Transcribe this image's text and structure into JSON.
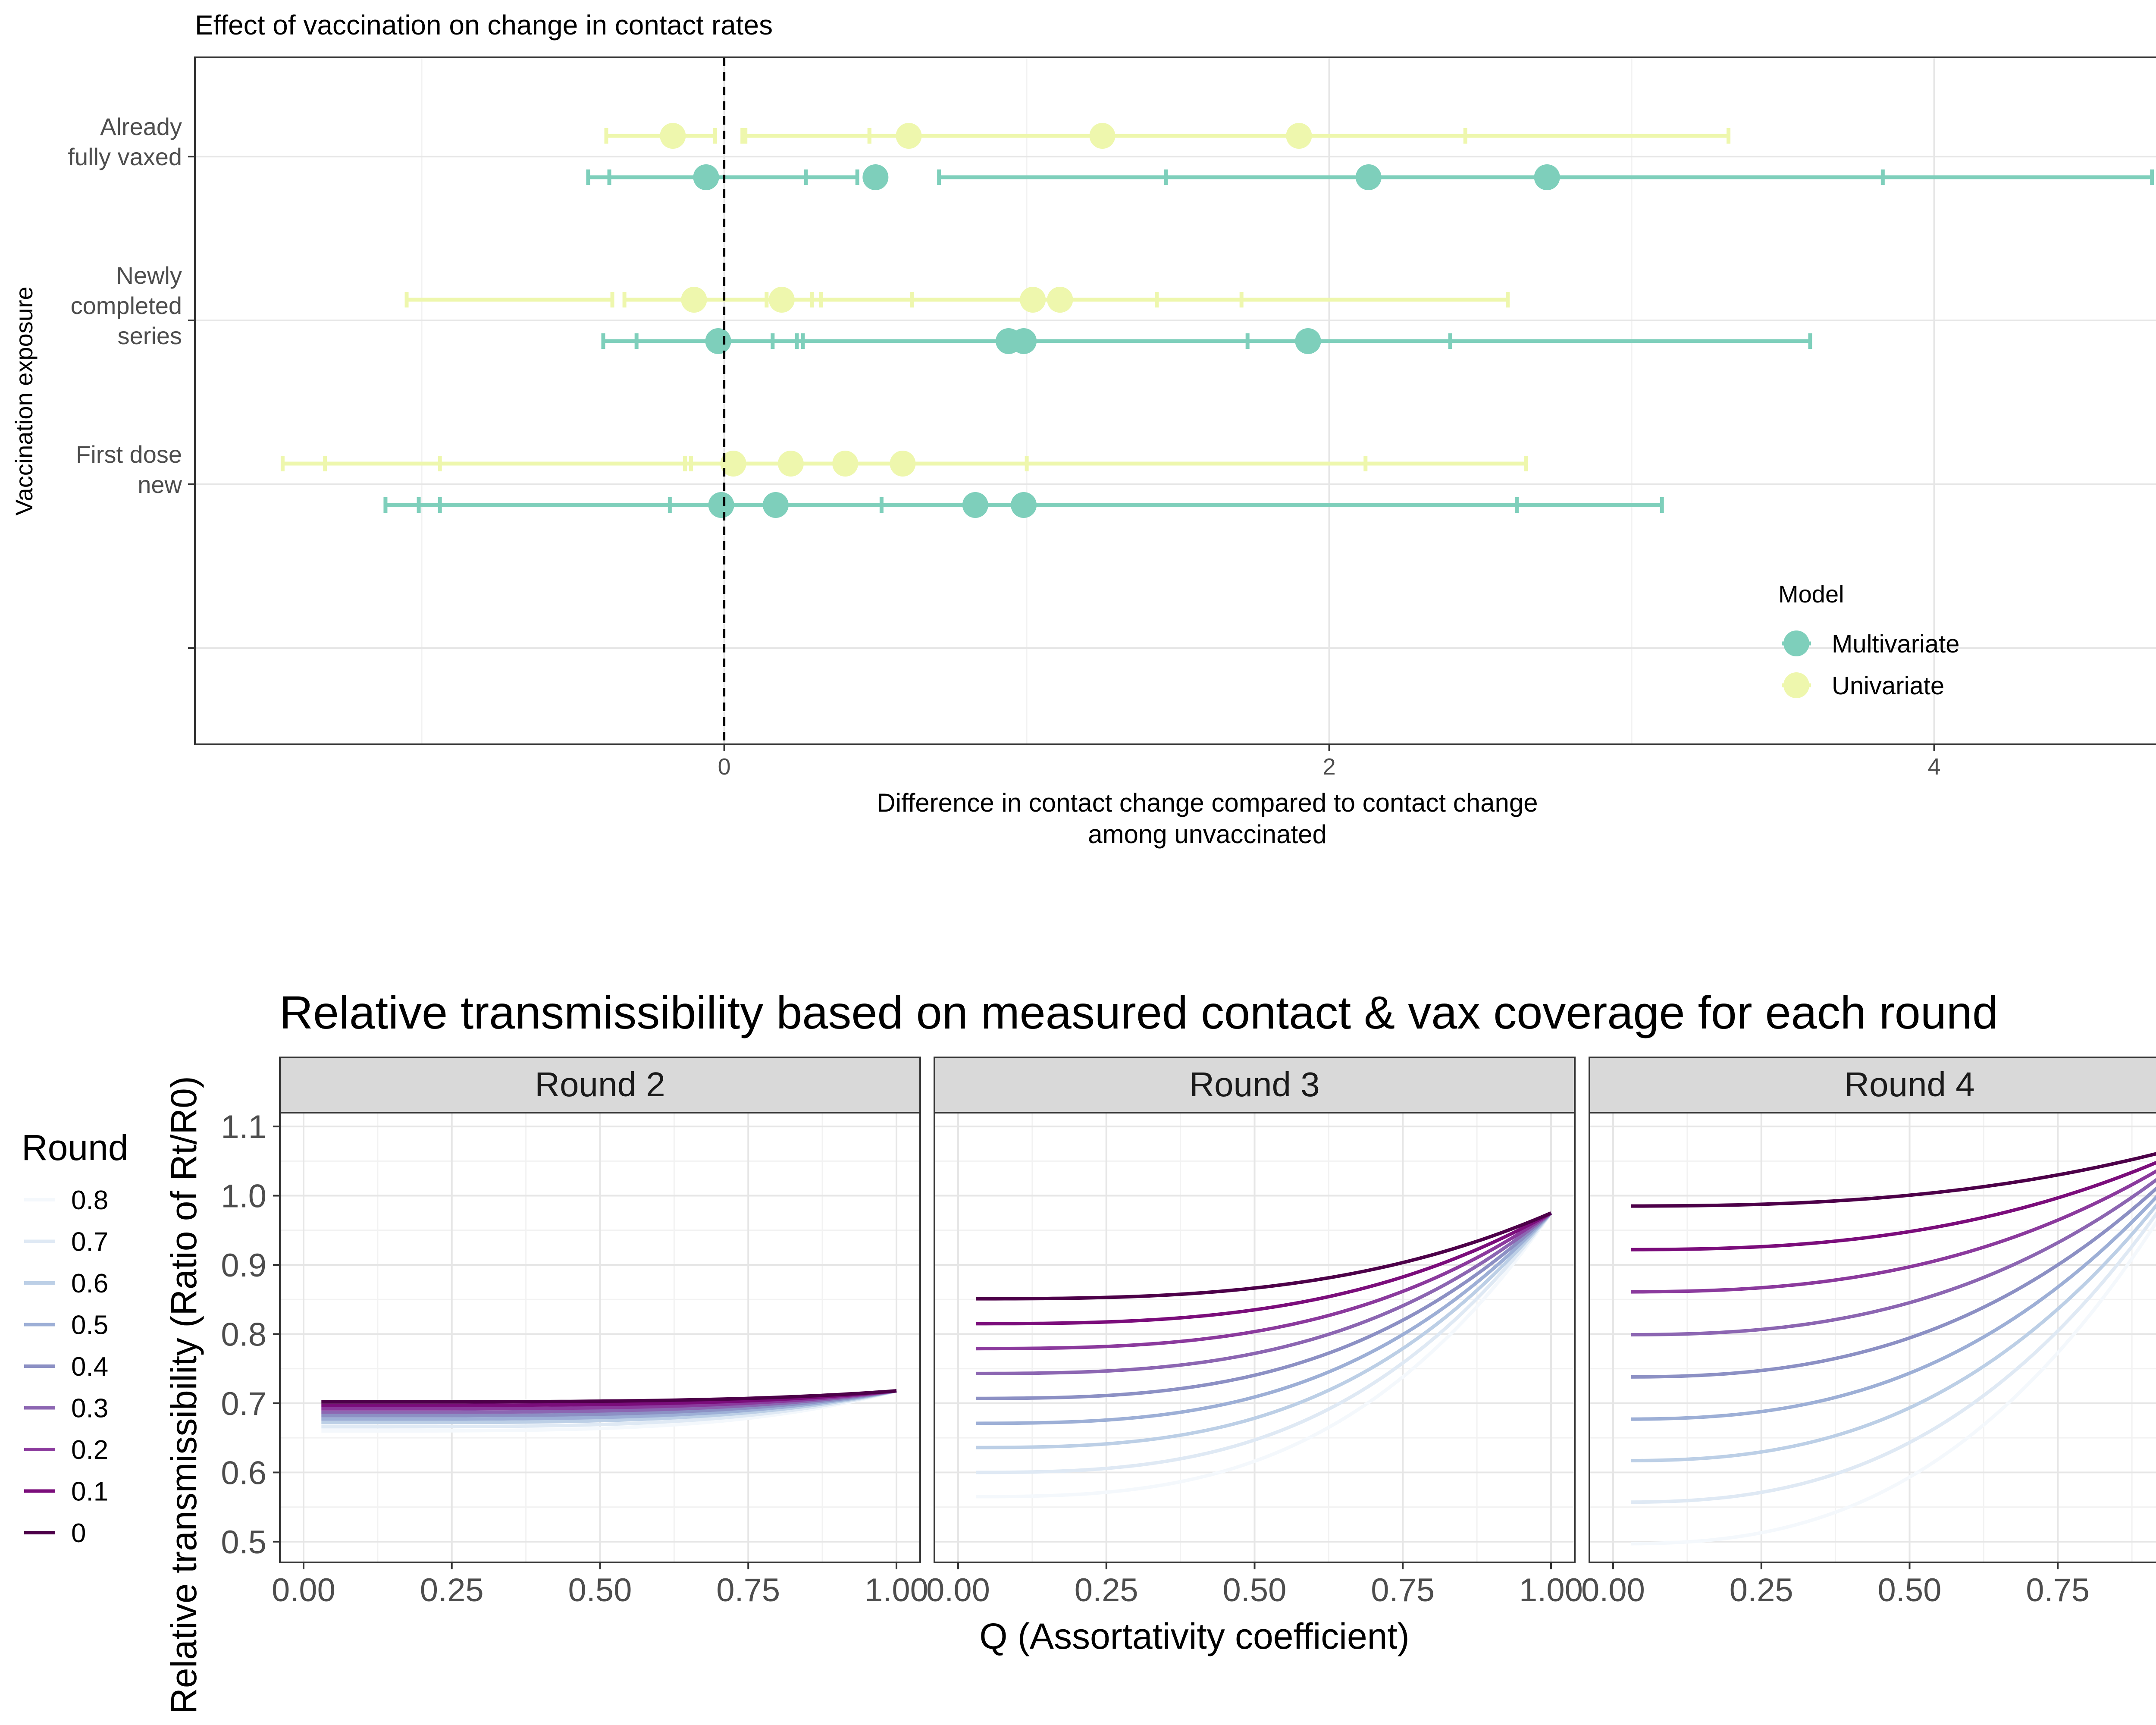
{
  "chart_data": [
    {
      "type": "scatter",
      "subtype": "forest-plot",
      "title": "Effect of vaccination on change in contact rates",
      "xlabel": "Difference in contact change compared to contact change among unvaccinated",
      "xlabel_lines": [
        "Difference in contact change compared to contact change",
        "among unvaccinated"
      ],
      "ylabel": "Vaccination exposure",
      "xlim": [
        -1.75,
        4.95
      ],
      "x_ticks": [
        0,
        2,
        4
      ],
      "x_tick_labels": [
        "0",
        "2",
        "4"
      ],
      "reference_line": 0,
      "grid": true,
      "legend_position": "bottom-right",
      "legend": {
        "title": "Model",
        "entries": [
          {
            "name": "Multivariate",
            "color": "#7ecfbb"
          },
          {
            "name": "Univariate",
            "color": "#eef7ad"
          }
        ]
      },
      "categories": [
        {
          "id": "already",
          "label_lines": [
            "Already",
            "fully vaxed"
          ]
        },
        {
          "id": "newly",
          "label_lines": [
            "Newly",
            "completed",
            "series"
          ]
        },
        {
          "id": "first",
          "label_lines": [
            "First dose",
            "new"
          ]
        }
      ],
      "series": [
        {
          "name": "Univariate",
          "color": "#eef7ad",
          "points": [
            {
              "category": "already",
              "estimate": -0.17,
              "low": -0.39,
              "high": -0.03
            },
            {
              "category": "already",
              "estimate": 0.61,
              "low": 0.07,
              "high": 0.48
            },
            {
              "category": "already",
              "estimate": 1.25,
              "low": 0.06,
              "high": 2.45
            },
            {
              "category": "already",
              "estimate": 1.9,
              "low": 0.48,
              "high": 3.32
            },
            {
              "category": "newly",
              "estimate": -0.1,
              "low": -1.05,
              "high": -0.37
            },
            {
              "category": "newly",
              "estimate": 0.19,
              "low": -0.33,
              "high": 0.32
            },
            {
              "category": "newly",
              "estimate": 1.02,
              "low": 0.14,
              "high": 1.71
            },
            {
              "category": "newly",
              "estimate": 1.11,
              "low": 0.29,
              "high": 2.59
            },
            {
              "category": "newly",
              "estimate": 1.11,
              "low": 0.62,
              "high": 1.43
            },
            {
              "category": "first",
              "estimate": 0.03,
              "low": -1.46,
              "high": -0.11
            },
            {
              "category": "first",
              "estimate": 0.22,
              "low": -0.94,
              "high": 2.12
            },
            {
              "category": "first",
              "estimate": 0.4,
              "low": -1.32,
              "high": 1.0
            },
            {
              "category": "first",
              "estimate": 0.59,
              "low": -0.13,
              "high": 2.65
            }
          ]
        },
        {
          "name": "Multivariate",
          "color": "#7ecfbb",
          "points": [
            {
              "category": "already",
              "estimate": -0.06,
              "low": -0.45,
              "high": 0.27
            },
            {
              "category": "already",
              "estimate": 0.5,
              "low": -0.38,
              "high": 0.44
            },
            {
              "category": "already",
              "estimate": 2.13,
              "low": 0.71,
              "high": 3.83
            },
            {
              "category": "already",
              "estimate": 2.72,
              "low": 1.46,
              "high": 4.72
            },
            {
              "category": "newly",
              "estimate": -0.02,
              "low": -0.4,
              "high": 0.16
            },
            {
              "category": "newly",
              "estimate": 0.94,
              "low": -0.29,
              "high": 1.73
            },
            {
              "category": "newly",
              "estimate": 0.99,
              "low": 0.24,
              "high": 2.4
            },
            {
              "category": "newly",
              "estimate": 1.93,
              "low": 0.26,
              "high": 3.59
            },
            {
              "category": "first",
              "estimate": -0.01,
              "low": -1.12,
              "high": 0.52
            },
            {
              "category": "first",
              "estimate": 0.17,
              "low": -1.01,
              "high": 3.1
            },
            {
              "category": "first",
              "estimate": 0.83,
              "low": -0.94,
              "high": 0.99
            },
            {
              "category": "first",
              "estimate": 0.99,
              "low": -0.18,
              "high": 2.62
            }
          ]
        }
      ]
    },
    {
      "type": "line",
      "facets": true,
      "title": "Relative transmissibility based on measured contact & vax coverage for each round",
      "xlabel": "Q (Assortativity coefficient)",
      "ylabel": "Relative transmissibility (Ratio of Rt/R0)",
      "xlim": [
        -0.04,
        1.04
      ],
      "ylim": [
        0.47,
        1.12
      ],
      "x_ticks": [
        0,
        0.25,
        0.5,
        0.75,
        1
      ],
      "x_tick_labels": [
        "0.00",
        "0.25",
        "0.50",
        "0.75",
        "1.00"
      ],
      "y_ticks": [
        0.5,
        0.6,
        0.7,
        0.8,
        0.9,
        1.0,
        1.1
      ],
      "y_tick_labels": [
        "0.5",
        "0.6",
        "0.7",
        "0.8",
        "0.9",
        "1.0",
        "1.1"
      ],
      "grid": true,
      "legend_position": "left",
      "legend": {
        "title": "Round",
        "entries": [
          {
            "label": "0.8",
            "value": 0.8,
            "color": "#f4f8fc"
          },
          {
            "label": "0.7",
            "value": 0.7,
            "color": "#dfe9f4"
          },
          {
            "label": "0.6",
            "value": 0.6,
            "color": "#bccfe6"
          },
          {
            "label": "0.5",
            "value": 0.5,
            "color": "#9dafd6"
          },
          {
            "label": "0.4",
            "value": 0.4,
            "color": "#8c90c4"
          },
          {
            "label": "0.3",
            "value": 0.3,
            "color": "#8c66b2"
          },
          {
            "label": "0.2",
            "value": 0.2,
            "color": "#8b3a9d"
          },
          {
            "label": "0.1",
            "value": 0.1,
            "color": "#7b0d7b"
          },
          {
            "label": "0",
            "value": 0,
            "color": "#4d0049"
          }
        ]
      },
      "panels": [
        {
          "strip": "Round 2",
          "start": {
            "0": 0.702,
            "0.1": 0.697,
            "0.2": 0.692,
            "0.3": 0.687,
            "0.4": 0.682,
            "0.5": 0.677,
            "0.6": 0.672,
            "0.7": 0.666,
            "0.8": 0.66
          },
          "end": 0.718,
          "exponent": 4
        },
        {
          "strip": "Round 3",
          "start": {
            "0": 0.851,
            "0.1": 0.815,
            "0.2": 0.779,
            "0.3": 0.743,
            "0.4": 0.707,
            "0.5": 0.671,
            "0.6": 0.636,
            "0.7": 0.6,
            "0.8": 0.565
          },
          "end": 0.975,
          "exponent": 3
        },
        {
          "strip": "Round 4",
          "start": {
            "0": 0.985,
            "0.1": 0.922,
            "0.2": 0.861,
            "0.3": 0.799,
            "0.4": 0.738,
            "0.5": 0.677,
            "0.6": 0.617,
            "0.7": 0.557,
            "0.8": 0.497
          },
          "end": 1.08,
          "exponent": 2.6
        }
      ]
    }
  ]
}
